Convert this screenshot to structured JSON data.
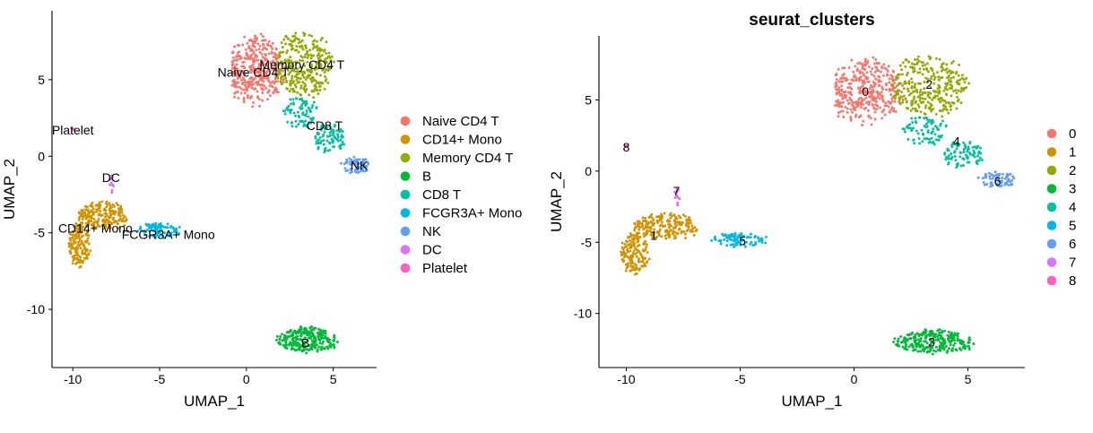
{
  "chart_data": [
    {
      "type": "scatter",
      "title": "",
      "xlabel": "UMAP_1",
      "ylabel": "UMAP_2",
      "xlim": [
        -11.2,
        7.5
      ],
      "ylim": [
        -13.8,
        9.5
      ],
      "xticks": [
        -10,
        -5,
        0,
        5
      ],
      "yticks": [
        -10,
        -5,
        0,
        5
      ],
      "legend_position": "right",
      "legend": [
        {
          "label": "Naive CD4 T",
          "color": "#F8766D"
        },
        {
          "label": "CD14+ Mono",
          "color": "#D39200"
        },
        {
          "label": "Memory CD4 T",
          "color": "#93AA00"
        },
        {
          "label": "B",
          "color": "#00BA38"
        },
        {
          "label": "CD8 T",
          "color": "#00C19F"
        },
        {
          "label": "FCGR3A+ Mono",
          "color": "#00B9E3"
        },
        {
          "label": "NK",
          "color": "#619CFF"
        },
        {
          "label": "DC",
          "color": "#DB72FB"
        },
        {
          "label": "Platelet",
          "color": "#FF61C3"
        }
      ],
      "clusters": [
        {
          "label": "Naive CD4 T",
          "color": "#F8766D",
          "blobs": [
            {
              "cx": 0.6,
              "cy": 5.6,
              "rx": 1.6,
              "ry": 2.2,
              "n": 360
            }
          ],
          "label_pos": [
            0.4,
            5.5
          ]
        },
        {
          "label": "Memory CD4 T",
          "color": "#93AA00",
          "blobs": [
            {
              "cx": 3.3,
              "cy": 6.0,
              "rx": 1.7,
              "ry": 2.0,
              "n": 300
            }
          ],
          "label_pos": [
            3.2,
            6.0
          ]
        },
        {
          "label": "CD8 T",
          "color": "#00C19F",
          "blobs": [
            {
              "cx": 3.2,
              "cy": 2.8,
              "rx": 1.0,
              "ry": 1.0,
              "n": 80
            },
            {
              "cx": 4.8,
              "cy": 1.2,
              "rx": 0.9,
              "ry": 0.9,
              "n": 90
            }
          ],
          "label_pos": [
            4.5,
            2.0
          ]
        },
        {
          "label": "NK",
          "color": "#619CFF",
          "blobs": [
            {
              "cx": 6.3,
              "cy": -0.6,
              "rx": 0.8,
              "ry": 0.5,
              "n": 70
            }
          ],
          "label_pos": [
            6.5,
            -0.6
          ]
        },
        {
          "label": "DC",
          "color": "#DB72FB",
          "blobs": [
            {
              "cx": -7.8,
              "cy": -1.8,
              "rx": 0.15,
              "ry": 0.6,
              "n": 12
            }
          ],
          "label_pos": [
            -7.8,
            -1.4
          ]
        },
        {
          "label": "Platelet",
          "color": "#FF61C3",
          "blobs": [
            {
              "cx": -10.0,
              "cy": 1.7,
              "rx": 0.05,
              "ry": 0.1,
              "n": 3
            }
          ],
          "label_pos": [
            -10.0,
            1.7
          ]
        },
        {
          "label": "CD14+ Mono",
          "color": "#D39200",
          "blobs": [
            {
              "cx": -8.3,
              "cy": -3.9,
              "rx": 1.4,
              "ry": 0.9,
              "n": 200
            },
            {
              "cx": -9.6,
              "cy": -5.8,
              "rx": 0.6,
              "ry": 1.4,
              "n": 150
            }
          ],
          "label_pos": [
            -8.7,
            -4.7
          ]
        },
        {
          "label": "FCGR3A+ Mono",
          "color": "#00B9E3",
          "blobs": [
            {
              "cx": -5.0,
              "cy": -4.8,
              "rx": 1.2,
              "ry": 0.5,
              "n": 90
            }
          ],
          "label_pos": [
            -4.5,
            -5.1
          ]
        },
        {
          "label": "B",
          "color": "#00BA38",
          "blobs": [
            {
              "cx": 3.5,
              "cy": -12.0,
              "rx": 1.7,
              "ry": 0.8,
              "n": 260
            }
          ],
          "label_pos": [
            3.4,
            -12.2
          ]
        }
      ]
    },
    {
      "type": "scatter",
      "title": "seurat_clusters",
      "xlabel": "UMAP_1",
      "ylabel": "UMAP_2",
      "xlim": [
        -11.2,
        7.5
      ],
      "ylim": [
        -13.8,
        9.5
      ],
      "xticks": [
        -10,
        -5,
        0,
        5
      ],
      "yticks": [
        -10,
        -5,
        0,
        5
      ],
      "legend_position": "right",
      "legend": [
        {
          "label": "0",
          "color": "#F8766D"
        },
        {
          "label": "1",
          "color": "#D39200"
        },
        {
          "label": "2",
          "color": "#93AA00"
        },
        {
          "label": "3",
          "color": "#00BA38"
        },
        {
          "label": "4",
          "color": "#00C19F"
        },
        {
          "label": "5",
          "color": "#00B9E3"
        },
        {
          "label": "6",
          "color": "#619CFF"
        },
        {
          "label": "7",
          "color": "#DB72FB"
        },
        {
          "label": "8",
          "color": "#FF61C3"
        }
      ],
      "clusters": [
        {
          "label": "0",
          "color": "#F8766D",
          "blobs": [
            {
              "cx": 0.6,
              "cy": 5.6,
              "rx": 1.6,
              "ry": 2.2,
              "n": 360
            }
          ],
          "label_pos": [
            0.5,
            5.6
          ]
        },
        {
          "label": "2",
          "color": "#93AA00",
          "blobs": [
            {
              "cx": 3.3,
              "cy": 6.0,
              "rx": 1.7,
              "ry": 2.0,
              "n": 300
            }
          ],
          "label_pos": [
            3.3,
            6.1
          ]
        },
        {
          "label": "4",
          "color": "#00C19F",
          "blobs": [
            {
              "cx": 3.2,
              "cy": 2.8,
              "rx": 1.0,
              "ry": 1.0,
              "n": 80
            },
            {
              "cx": 4.8,
              "cy": 1.2,
              "rx": 0.9,
              "ry": 0.9,
              "n": 90
            }
          ],
          "label_pos": [
            4.5,
            2.1
          ]
        },
        {
          "label": "6",
          "color": "#619CFF",
          "blobs": [
            {
              "cx": 6.3,
              "cy": -0.6,
              "rx": 0.8,
              "ry": 0.5,
              "n": 70
            }
          ],
          "label_pos": [
            6.3,
            -0.7
          ]
        },
        {
          "label": "7",
          "color": "#DB72FB",
          "blobs": [
            {
              "cx": -7.8,
              "cy": -1.8,
              "rx": 0.15,
              "ry": 0.6,
              "n": 12
            }
          ],
          "label_pos": [
            -7.8,
            -1.4
          ]
        },
        {
          "label": "8",
          "color": "#FF61C3",
          "blobs": [
            {
              "cx": -10.0,
              "cy": 1.7,
              "rx": 0.05,
              "ry": 0.1,
              "n": 3
            }
          ],
          "label_pos": [
            -10.0,
            1.7
          ]
        },
        {
          "label": "1",
          "color": "#D39200",
          "blobs": [
            {
              "cx": -8.3,
              "cy": -3.9,
              "rx": 1.4,
              "ry": 0.9,
              "n": 200
            },
            {
              "cx": -9.6,
              "cy": -5.8,
              "rx": 0.6,
              "ry": 1.4,
              "n": 150
            }
          ],
          "label_pos": [
            -8.8,
            -4.5
          ]
        },
        {
          "label": "5",
          "color": "#00B9E3",
          "blobs": [
            {
              "cx": -5.0,
              "cy": -4.8,
              "rx": 1.2,
              "ry": 0.5,
              "n": 90
            }
          ],
          "label_pos": [
            -4.9,
            -4.9
          ]
        },
        {
          "label": "3",
          "color": "#00BA38",
          "blobs": [
            {
              "cx": 3.5,
              "cy": -12.0,
              "rx": 1.7,
              "ry": 0.8,
              "n": 260
            }
          ],
          "label_pos": [
            3.4,
            -12.0
          ]
        }
      ]
    }
  ]
}
